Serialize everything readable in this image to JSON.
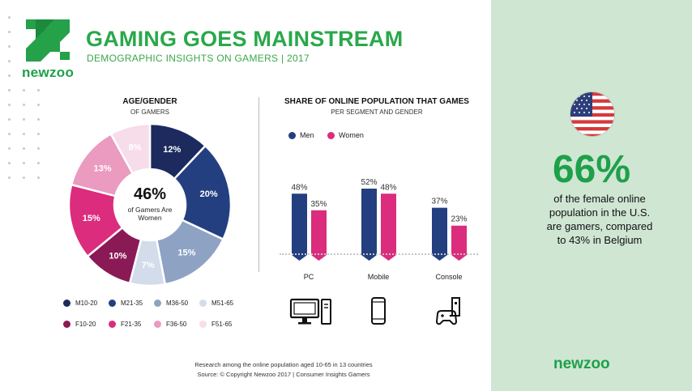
{
  "header": {
    "title": "GAMING GOES MAINSTREAM",
    "subtitle": "DEMOGRAPHIC INSIGHTS ON GAMERS | 2017",
    "logo_text": "newzoo"
  },
  "colors": {
    "green": "#2aa84a",
    "navy": "#1c2a5e",
    "blue": "#243f80",
    "steel": "#8ea2c4",
    "lightblue": "#d2dcea",
    "maroon": "#8a1a55",
    "magenta": "#db2c7d",
    "pink": "#eb9ac0",
    "lightpink": "#f7dde9",
    "right_bg": "#cfe6d3"
  },
  "age_gender": {
    "title": "AGE/GENDER",
    "subtitle": "OF GAMERS",
    "center_pct": "46%",
    "center_line1": "of Gamers Are",
    "center_line2": "Women"
  },
  "share": {
    "title": "SHARE OF ONLINE POPULATION THAT GAMES",
    "subtitle": "PER SEGMENT AND GENDER"
  },
  "chart_data": [
    {
      "type": "pie",
      "title": "AGE/GENDER",
      "subtitle": "OF GAMERS",
      "categories": [
        "M10-20",
        "M21-35",
        "M36-50",
        "M51-65",
        "F10-20",
        "F21-35",
        "F36-50",
        "F51-65"
      ],
      "values": [
        12,
        20,
        15,
        7,
        10,
        15,
        13,
        8
      ],
      "labels": [
        "12%",
        "20%",
        "15%",
        "7%",
        "10%",
        "15%",
        "13%",
        "8%"
      ],
      "colors": [
        "#1c2a5e",
        "#243f80",
        "#8ea2c4",
        "#d2dcea",
        "#8a1a55",
        "#db2c7d",
        "#eb9ac0",
        "#f7dde9"
      ],
      "label_colors": [
        "#fff",
        "#fff",
        "#fff",
        "#fff",
        "#fff",
        "#fff",
        "#fff",
        "#fff"
      ],
      "donut": true
    },
    {
      "type": "bar",
      "title": "SHARE OF ONLINE POPULATION THAT GAMES",
      "subtitle": "PER SEGMENT AND GENDER",
      "categories": [
        "PC",
        "Mobile",
        "Console"
      ],
      "series": [
        {
          "name": "Men",
          "values": [
            48,
            52,
            37
          ],
          "labels": [
            "48%",
            "52%",
            "37%"
          ],
          "color": "#243f80"
        },
        {
          "name": "Women",
          "values": [
            35,
            48,
            23
          ],
          "labels": [
            "35%",
            "48%",
            "23%"
          ],
          "color": "#db2c7d"
        }
      ],
      "ylim": [
        0,
        52
      ],
      "category_icons": [
        "desktop-computer-icon",
        "smartphone-icon",
        "game-console-icon"
      ]
    }
  ],
  "legend_pie": [
    {
      "label": "M10-20",
      "color": "#1c2a5e"
    },
    {
      "label": "M21-35",
      "color": "#243f80"
    },
    {
      "label": "M36-50",
      "color": "#8ea2c4"
    },
    {
      "label": "M51-65",
      "color": "#d2dcea"
    },
    {
      "label": "F10-20",
      "color": "#8a1a55"
    },
    {
      "label": "F21-35",
      "color": "#db2c7d"
    },
    {
      "label": "F36-50",
      "color": "#eb9ac0"
    },
    {
      "label": "F51-65",
      "color": "#f7dde9"
    }
  ],
  "footer": {
    "line1": "Research among the online population aged 10-65 in 13 countries",
    "line2": "Source: © Copyright Newzoo 2017 | Consumer Insights Gamers"
  },
  "highlight": {
    "flag_icon": "us-flag-icon",
    "pct": "66%",
    "line1": "of the female online",
    "line2": "population in the U.S.",
    "line3": "are gamers, compared",
    "line4": "to 43% in Belgium",
    "logo_text": "newzoo"
  }
}
